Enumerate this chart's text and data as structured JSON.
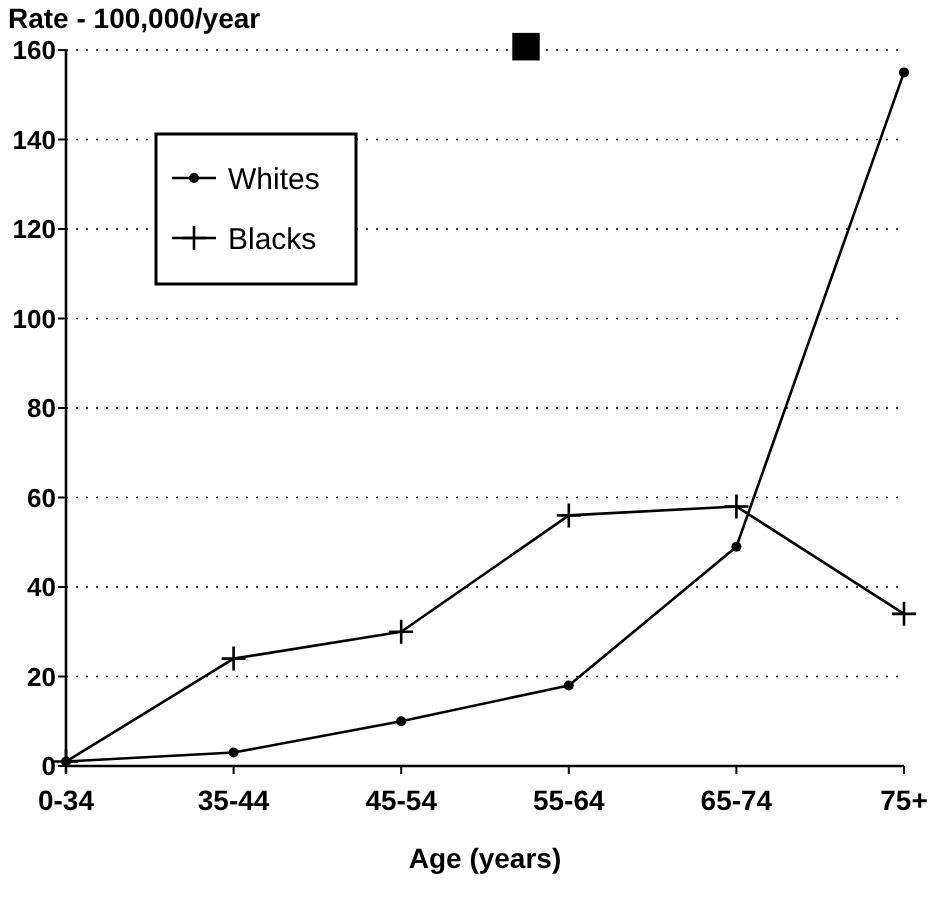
{
  "chart_data": {
    "type": "line",
    "title": "■",
    "xlabel": "Age (years)",
    "ylabel": "Rate - 100,000/year",
    "categories": [
      "0-34",
      "35-44",
      "45-54",
      "55-64",
      "65-74",
      "75+"
    ],
    "series": [
      {
        "name": "Whites",
        "color": "#000000",
        "marker": "circle",
        "values": [
          1,
          3,
          10,
          18,
          49,
          155
        ]
      },
      {
        "name": "Blacks",
        "color": "#000000",
        "marker": "cross",
        "values": [
          1,
          24,
          30,
          56,
          58,
          34
        ]
      }
    ],
    "ylim": [
      0,
      160
    ],
    "yticks": [
      0,
      20,
      40,
      60,
      80,
      100,
      120,
      140,
      160
    ],
    "grid": "y",
    "legend": "top left"
  }
}
